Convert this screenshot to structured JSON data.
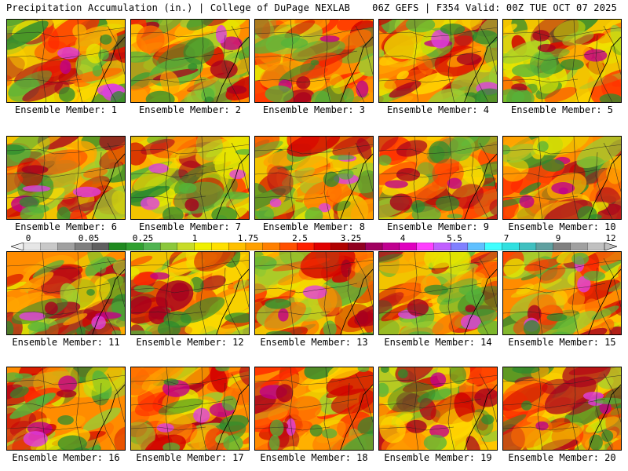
{
  "header": {
    "left": "Precipitation Accumulation (in.) | College of DuPage NEXLAB",
    "right": "06Z GEFS | F354 Valid: 00Z TUE OCT 07 2025"
  },
  "members": [
    {
      "label": "Ensemble Member: 1",
      "number": 1
    },
    {
      "label": "Ensemble Member: 2",
      "number": 2
    },
    {
      "label": "Ensemble Member: 3",
      "number": 3
    },
    {
      "label": "Ensemble Member: 4",
      "number": 4
    },
    {
      "label": "Ensemble Member: 5",
      "number": 5
    },
    {
      "label": "Ensemble Member: 6",
      "number": 6
    },
    {
      "label": "Ensemble Member: 7",
      "number": 7
    },
    {
      "label": "Ensemble Member: 8",
      "number": 8
    },
    {
      "label": "Ensemble Member: 9",
      "number": 9
    },
    {
      "label": "Ensemble Member: 10",
      "number": 10
    },
    {
      "label": "Ensemble Member: 11",
      "number": 11
    },
    {
      "label": "Ensemble Member: 12",
      "number": 12
    },
    {
      "label": "Ensemble Member: 13",
      "number": 13
    },
    {
      "label": "Ensemble Member: 14",
      "number": 14
    },
    {
      "label": "Ensemble Member: 15",
      "number": 15
    },
    {
      "label": "Ensemble Member: 16",
      "number": 16
    },
    {
      "label": "Ensemble Member: 17",
      "number": 17
    },
    {
      "label": "Ensemble Member: 18",
      "number": 18
    },
    {
      "label": "Ensemble Member: 19",
      "number": 19
    },
    {
      "label": "Ensemble Member: 20",
      "number": 20
    }
  ],
  "colorbar": {
    "tick_labels": [
      "0",
      "0.05",
      "0.25",
      "1",
      "1.75",
      "2.5",
      "3.25",
      "4",
      "5.5",
      "7",
      "9",
      "12"
    ],
    "colors": [
      "#e6e6e6",
      "#c8c8c8",
      "#a0a0a0",
      "#7f7f7f",
      "#606060",
      "#1e8a1e",
      "#2fa02f",
      "#50b450",
      "#8cc83c",
      "#c8dc28",
      "#f0f000",
      "#ffe000",
      "#ffc000",
      "#ffa000",
      "#ff8000",
      "#ff5000",
      "#ff2000",
      "#e00000",
      "#b00000",
      "#900020",
      "#a00060",
      "#c00090",
      "#e000c0",
      "#ff40ff",
      "#c060ff",
      "#8080ff",
      "#60c0ff",
      "#40ffff",
      "#30e0e0",
      "#40c0c0",
      "#60a0a0",
      "#808080",
      "#a0a0a0",
      "#c0c0c0"
    ]
  }
}
